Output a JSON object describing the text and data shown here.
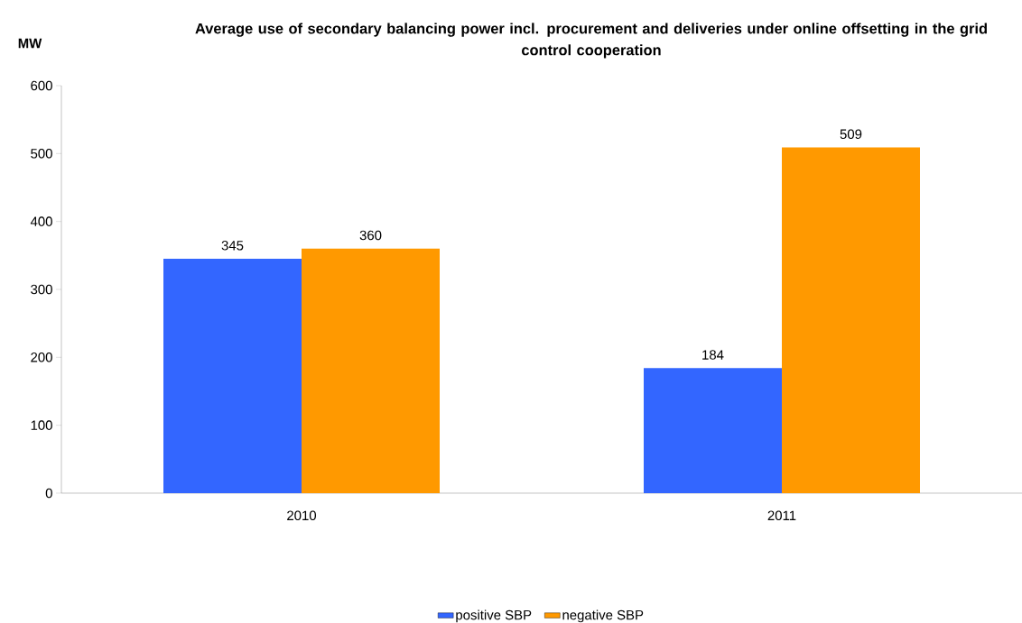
{
  "chart_data": {
    "type": "bar",
    "title": "Average use of secondary balancing power incl. procurement and deliveries under online offsetting in the grid control cooperation",
    "ylabel": "MW",
    "categories": [
      "2010",
      "2011"
    ],
    "series": [
      {
        "name": "positive SBP",
        "color": "#3366ff",
        "values": [
          345,
          184
        ]
      },
      {
        "name": "negative SBP",
        "color": "#ff9900",
        "values": [
          360,
          509
        ]
      }
    ],
    "ylim": [
      0,
      600
    ],
    "yticks": [
      0,
      100,
      200,
      300,
      400,
      500,
      600
    ],
    "data_labels": true,
    "grid": false,
    "legend": "bottom"
  }
}
